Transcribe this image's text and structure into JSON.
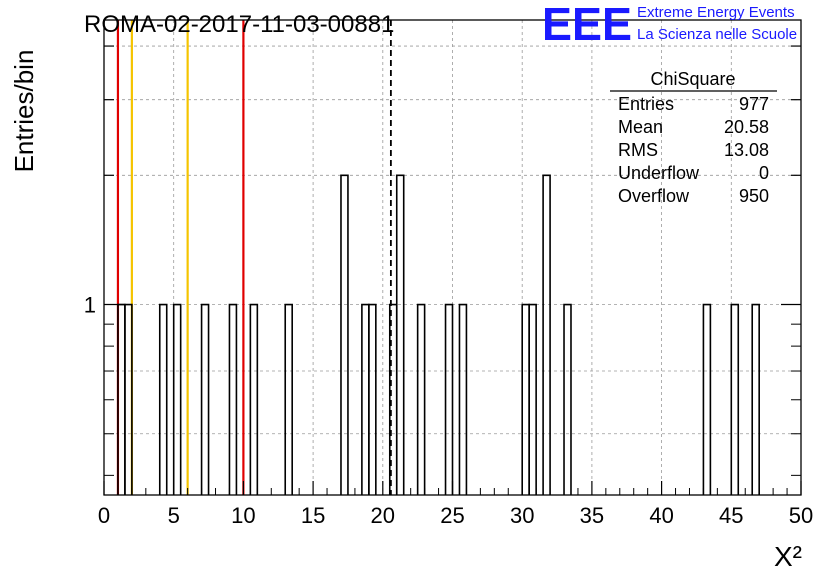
{
  "header": {
    "run_title": "ROMA-02-2017-11-03-00881",
    "logo_text": "EEE",
    "org_line1": "Extreme Energy Events",
    "org_line2": "La Scienza nelle Scuole",
    "logo_color": "#1a1aff"
  },
  "stats_box": {
    "title": "ChiSquare",
    "rows": [
      {
        "label": "Entries",
        "value": "977"
      },
      {
        "label": "Mean",
        "value": "20.58"
      },
      {
        "label": "RMS",
        "value": "13.08"
      },
      {
        "label": "Underflow",
        "value": "0"
      },
      {
        "label": "Overflow",
        "value": "950"
      }
    ]
  },
  "chart_data": {
    "type": "bar",
    "histogram_style": "step",
    "title": "ROMA-02-2017-11-03-00881",
    "xlabel": "X²",
    "ylabel": "Entries/bin",
    "y_scale": "log",
    "xlim": [
      0,
      50
    ],
    "ylim": [
      0.36,
      4.6
    ],
    "x_ticks": [
      0,
      5,
      10,
      15,
      20,
      25,
      30,
      35,
      40,
      45,
      50
    ],
    "y_tick_labels": [
      {
        "value": 1,
        "label": "1"
      }
    ],
    "grid": true,
    "bin_width": 0.5,
    "bins": [
      {
        "x": 1.0,
        "count": 1
      },
      {
        "x": 1.5,
        "count": 1
      },
      {
        "x": 4.0,
        "count": 1
      },
      {
        "x": 5.0,
        "count": 1
      },
      {
        "x": 7.0,
        "count": 1
      },
      {
        "x": 9.0,
        "count": 1
      },
      {
        "x": 10.5,
        "count": 1
      },
      {
        "x": 13.0,
        "count": 1
      },
      {
        "x": 17.0,
        "count": 2
      },
      {
        "x": 18.5,
        "count": 1
      },
      {
        "x": 19.0,
        "count": 1
      },
      {
        "x": 20.5,
        "count": 1
      },
      {
        "x": 21.0,
        "count": 2
      },
      {
        "x": 22.5,
        "count": 1
      },
      {
        "x": 24.5,
        "count": 1
      },
      {
        "x": 25.5,
        "count": 1
      },
      {
        "x": 30.0,
        "count": 1
      },
      {
        "x": 30.5,
        "count": 1
      },
      {
        "x": 31.5,
        "count": 2
      },
      {
        "x": 33.0,
        "count": 1
      },
      {
        "x": 43.0,
        "count": 1
      },
      {
        "x": 45.0,
        "count": 1
      },
      {
        "x": 46.5,
        "count": 1
      }
    ],
    "reference_lines": [
      {
        "x": 1.0,
        "color": "#e00000",
        "style": "solid"
      },
      {
        "x": 2.0,
        "color": "#f5c400",
        "style": "solid"
      },
      {
        "x": 6.0,
        "color": "#f5c400",
        "style": "solid"
      },
      {
        "x": 10.0,
        "color": "#e00000",
        "style": "solid"
      },
      {
        "x": 20.58,
        "color": "#000000",
        "style": "dashed"
      }
    ]
  }
}
